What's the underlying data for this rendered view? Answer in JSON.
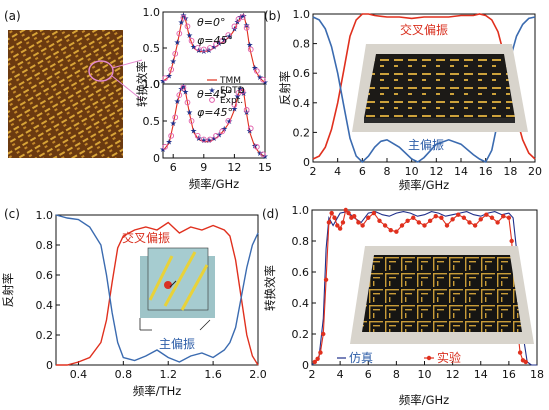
{
  "colors": {
    "red": "#e0301e",
    "blue": "#3b6bb0",
    "navy": "#1f2f8a",
    "magenta": "#e05aa8"
  },
  "chart_data": [
    {
      "panel": "(a)",
      "type": "line",
      "xlabel": "频率/GHz",
      "ylabel": "转换效率",
      "xlim": [
        5,
        15
      ],
      "ylim": [
        0,
        1
      ],
      "xticks": [
        "6",
        "9",
        "12",
        "15"
      ],
      "yticks": [
        "0",
        "0.5",
        "1.0"
      ],
      "subplots": [
        {
          "annotations": [
            "θ=0°",
            "φ=45°"
          ],
          "series": [
            {
              "name": "TMM",
              "x": [
                5,
                5.6,
                6,
                6.4,
                6.8,
                7.0,
                7.2,
                7.6,
                8,
                8.5,
                9,
                9.5,
                10,
                10.5,
                11,
                11.5,
                12,
                12.3,
                12.6,
                12.9,
                13.2,
                13.5,
                14,
                14.5,
                15
              ],
              "y": [
                0.04,
                0.1,
                0.3,
                0.55,
                0.85,
                0.97,
                0.9,
                0.65,
                0.5,
                0.45,
                0.45,
                0.46,
                0.5,
                0.55,
                0.6,
                0.65,
                0.75,
                0.85,
                0.92,
                0.97,
                0.8,
                0.5,
                0.2,
                0.08,
                0.02
              ]
            },
            {
              "name": "FDTD",
              "x": [
                5,
                5.6,
                6,
                6.4,
                6.8,
                7.0,
                7.2,
                7.6,
                8,
                8.5,
                9,
                9.5,
                10,
                10.5,
                11,
                11.5,
                12,
                12.3,
                12.6,
                12.9,
                13.2,
                13.5,
                14,
                14.5,
                15
              ],
              "y": [
                0.05,
                0.12,
                0.32,
                0.58,
                0.86,
                0.96,
                0.92,
                0.68,
                0.52,
                0.47,
                0.46,
                0.47,
                0.52,
                0.57,
                0.62,
                0.67,
                0.77,
                0.87,
                0.94,
                0.95,
                0.82,
                0.55,
                0.23,
                0.1,
                0.03
              ]
            },
            {
              "name": "Expt.",
              "x": [
                5.2,
                5.8,
                6.2,
                6.6,
                7.0,
                7.4,
                7.8,
                8.4,
                9,
                9.6,
                10.2,
                10.8,
                11.4,
                12,
                12.4,
                12.8,
                13.2,
                13.6,
                14.2,
                14.8
              ],
              "y": [
                0.08,
                0.2,
                0.42,
                0.7,
                0.92,
                0.8,
                0.6,
                0.5,
                0.48,
                0.5,
                0.55,
                0.6,
                0.68,
                0.8,
                0.9,
                0.93,
                0.78,
                0.48,
                0.18,
                0.06
              ]
            }
          ]
        },
        {
          "annotations": [
            "θ=45°",
            "φ=45°"
          ],
          "series": [
            {
              "name": "TMM",
              "x": [
                5,
                5.6,
                6,
                6.4,
                6.8,
                7.0,
                7.2,
                7.6,
                8,
                8.5,
                9,
                9.5,
                10,
                10.5,
                11,
                11.5,
                12,
                12.3,
                12.6,
                12.9,
                13.2,
                13.5,
                14,
                14.5,
                15
              ],
              "y": [
                0.1,
                0.2,
                0.45,
                0.75,
                0.95,
                0.98,
                0.9,
                0.6,
                0.35,
                0.25,
                0.22,
                0.22,
                0.25,
                0.3,
                0.38,
                0.48,
                0.65,
                0.82,
                0.95,
                0.9,
                0.6,
                0.35,
                0.15,
                0.06,
                0.02
              ]
            },
            {
              "name": "FDTD",
              "x": [
                5,
                5.6,
                6,
                6.4,
                6.8,
                7.0,
                7.2,
                7.6,
                8,
                8.5,
                9,
                9.5,
                10,
                10.5,
                11,
                11.5,
                12,
                12.3,
                12.6,
                12.9,
                13.2,
                13.5,
                14,
                14.5,
                15
              ],
              "y": [
                0.12,
                0.22,
                0.47,
                0.77,
                0.94,
                0.97,
                0.9,
                0.62,
                0.37,
                0.27,
                0.24,
                0.24,
                0.27,
                0.32,
                0.4,
                0.5,
                0.67,
                0.84,
                0.94,
                0.88,
                0.62,
                0.37,
                0.17,
                0.07,
                0.03
              ]
            },
            {
              "name": "Expt.",
              "x": [
                5.2,
                5.8,
                6.2,
                6.6,
                7.0,
                7.4,
                7.8,
                8.4,
                9,
                9.6,
                10.2,
                10.8,
                11.4,
                12,
                12.4,
                12.8,
                13.2,
                13.6,
                14.2,
                14.8
              ],
              "y": [
                0.15,
                0.3,
                0.55,
                0.85,
                0.95,
                0.75,
                0.5,
                0.3,
                0.25,
                0.25,
                0.3,
                0.36,
                0.5,
                0.72,
                0.88,
                0.9,
                0.65,
                0.4,
                0.15,
                0.05
              ]
            }
          ]
        }
      ]
    },
    {
      "panel": "(b)",
      "type": "line",
      "xlabel": "频率/GHz",
      "ylabel": "反射率",
      "xlim": [
        2,
        20
      ],
      "ylim": [
        0,
        1
      ],
      "xticks": [
        "2",
        "4",
        "6",
        "8",
        "10",
        "12",
        "14",
        "16",
        "18",
        "20"
      ],
      "yticks": [
        "0",
        "0.2",
        "0.4",
        "0.6",
        "0.8",
        "1.0"
      ],
      "series": [
        {
          "name": "交叉偏振",
          "color": "red",
          "x": [
            2,
            2.5,
            3,
            3.5,
            4,
            4.5,
            5,
            5.5,
            6,
            6.5,
            7,
            8,
            9,
            10,
            11,
            12,
            13,
            14,
            15,
            15.5,
            16,
            16.5,
            17,
            17.5,
            18,
            18.5,
            19,
            19.5,
            20
          ],
          "y": [
            0.02,
            0.04,
            0.1,
            0.22,
            0.4,
            0.62,
            0.85,
            0.96,
            1.0,
            1.0,
            0.99,
            0.98,
            0.98,
            0.97,
            0.98,
            0.98,
            0.98,
            0.99,
            0.99,
            1.0,
            0.99,
            0.96,
            0.88,
            0.72,
            0.5,
            0.3,
            0.15,
            0.06,
            0.02
          ]
        },
        {
          "name": "主偏振",
          "color": "blue",
          "x": [
            2,
            2.5,
            3,
            3.5,
            4,
            4.5,
            5,
            5.5,
            6,
            6.5,
            7,
            7.5,
            8,
            9,
            10,
            10.5,
            11,
            12,
            13,
            14,
            15,
            15.5,
            16,
            16.5,
            17,
            17.5,
            18,
            18.5,
            19,
            19.5,
            20
          ],
          "y": [
            0.98,
            0.96,
            0.9,
            0.78,
            0.6,
            0.38,
            0.16,
            0.04,
            0.0,
            0.04,
            0.1,
            0.14,
            0.15,
            0.1,
            0.02,
            0.0,
            0.03,
            0.12,
            0.15,
            0.12,
            0.05,
            0.02,
            0.0,
            0.08,
            0.28,
            0.5,
            0.7,
            0.85,
            0.93,
            0.97,
            0.98
          ]
        }
      ],
      "labels": [
        "交叉偏振",
        "主偏振"
      ]
    },
    {
      "panel": "(c)",
      "type": "line",
      "xlabel": "频率/THz",
      "ylabel": "反射率",
      "xlim": [
        0.2,
        2.0
      ],
      "ylim": [
        0,
        1
      ],
      "xticks": [
        "0.4",
        "0.8",
        "1.2",
        "1.6",
        "2.0"
      ],
      "yticks": [
        "0",
        "0.2",
        "0.4",
        "0.6",
        "0.8",
        "1.0"
      ],
      "series": [
        {
          "name": "交叉偏振",
          "color": "red",
          "x": [
            0.2,
            0.3,
            0.4,
            0.5,
            0.6,
            0.65,
            0.7,
            0.75,
            0.8,
            0.9,
            1.0,
            1.1,
            1.2,
            1.3,
            1.4,
            1.5,
            1.6,
            1.7,
            1.75,
            1.8,
            1.85,
            1.9,
            1.95,
            2.0
          ],
          "y": [
            0.0,
            0.0,
            0.02,
            0.05,
            0.15,
            0.3,
            0.55,
            0.78,
            0.86,
            0.9,
            0.92,
            0.9,
            0.95,
            0.88,
            0.92,
            0.9,
            0.93,
            0.9,
            0.86,
            0.7,
            0.45,
            0.2,
            0.06,
            0.0
          ]
        },
        {
          "name": "主偏振",
          "color": "blue",
          "x": [
            0.2,
            0.25,
            0.3,
            0.4,
            0.5,
            0.6,
            0.65,
            0.7,
            0.75,
            0.8,
            0.9,
            1.0,
            1.1,
            1.2,
            1.3,
            1.4,
            1.5,
            1.6,
            1.7,
            1.75,
            1.8,
            1.85,
            1.9,
            1.95,
            2.0
          ],
          "y": [
            1.0,
            0.99,
            0.98,
            0.97,
            0.92,
            0.8,
            0.6,
            0.35,
            0.15,
            0.05,
            0.03,
            0.06,
            0.1,
            0.05,
            0.02,
            0.06,
            0.08,
            0.05,
            0.1,
            0.15,
            0.25,
            0.45,
            0.65,
            0.8,
            0.88
          ]
        }
      ],
      "labels": [
        "交叉偏振",
        "主偏振"
      ]
    },
    {
      "panel": "(d)",
      "type": "line",
      "xlabel": "频率/GHz",
      "ylabel": "转换效率",
      "xlim": [
        2,
        18
      ],
      "ylim": [
        0,
        1
      ],
      "xticks": [
        "2",
        "4",
        "6",
        "8",
        "10",
        "12",
        "14",
        "16",
        "18"
      ],
      "yticks": [
        "0",
        "0.2",
        "0.4",
        "0.6",
        "0.8",
        "1.0"
      ],
      "series": [
        {
          "name": "仿真",
          "color": "navy",
          "x": [
            2,
            2.5,
            2.8,
            3.0,
            3.2,
            3.5,
            4,
            4.5,
            5,
            5.5,
            6,
            6.5,
            7,
            7.5,
            8,
            8.5,
            9,
            9.5,
            10,
            10.5,
            11,
            11.5,
            12,
            12.5,
            13,
            13.5,
            14,
            14.5,
            15,
            15.5,
            16,
            16.3,
            16.6,
            17,
            17.3,
            17.6,
            18
          ],
          "y": [
            0.0,
            0.05,
            0.3,
            0.75,
            0.95,
            0.9,
            0.98,
            0.99,
            0.95,
            0.92,
            0.98,
            0.99,
            0.97,
            0.96,
            0.98,
            0.99,
            0.98,
            0.96,
            0.97,
            0.99,
            0.98,
            0.96,
            0.97,
            0.98,
            0.99,
            0.97,
            0.96,
            0.98,
            0.99,
            0.97,
            0.98,
            0.95,
            0.7,
            0.2,
            0.02,
            0.0,
            0.0
          ]
        },
        {
          "name": "实验",
          "color": "red",
          "x": [
            2.2,
            2.4,
            2.6,
            2.8,
            3.0,
            3.2,
            3.4,
            3.6,
            3.8,
            4.0,
            4.2,
            4.4,
            4.6,
            4.8,
            5.0,
            5.3,
            5.6,
            6.0,
            6.4,
            6.8,
            7.2,
            7.6,
            8.0,
            8.4,
            8.8,
            9.2,
            9.6,
            10.0,
            10.4,
            10.8,
            11.2,
            11.6,
            12.0,
            12.4,
            12.8,
            13.2,
            13.6,
            14.0,
            14.4,
            14.8,
            15.2,
            15.6,
            16.0,
            16.2,
            16.4,
            16.6,
            16.8,
            17.0,
            17.2
          ],
          "y": [
            0.02,
            0.04,
            0.08,
            0.2,
            0.55,
            0.92,
            0.98,
            0.95,
            0.9,
            0.88,
            0.92,
            1.0,
            0.98,
            0.95,
            0.96,
            0.92,
            0.9,
            0.95,
            0.98,
            0.93,
            0.9,
            0.87,
            0.86,
            0.9,
            0.93,
            0.95,
            0.92,
            0.9,
            0.93,
            0.96,
            0.95,
            0.9,
            0.94,
            0.97,
            0.95,
            0.92,
            0.9,
            0.94,
            0.97,
            0.95,
            0.92,
            0.96,
            0.95,
            0.8,
            0.5,
            0.25,
            0.08,
            0.03,
            0.02
          ]
        }
      ],
      "labels": [
        "仿真",
        "实验"
      ]
    }
  ]
}
